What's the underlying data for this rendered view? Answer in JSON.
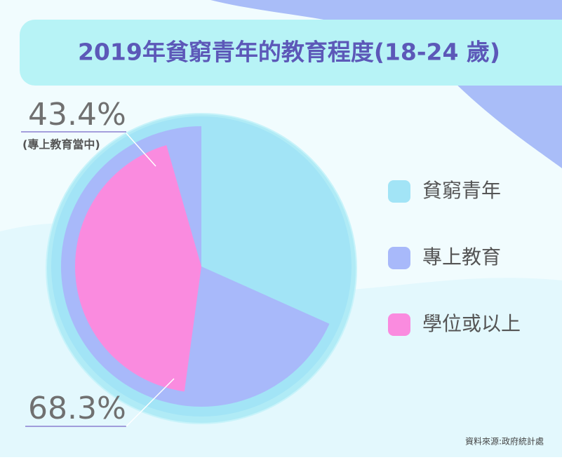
{
  "chart_data": {
    "type": "pie",
    "title": "2019年貧窮青年的教育程度(18-24 歲)",
    "categories": [
      "貧窮青年",
      "專上教育",
      "學位或以上"
    ],
    "values": [
      100,
      68.3,
      43.4
    ],
    "value_labels": [
      null,
      "68.3%",
      "43.4%"
    ],
    "colors": [
      "#a2e4f6",
      "#a8b9fa",
      "#fa8bdf"
    ],
    "annotation": "(專上教育當中)",
    "source": "資料來源:政府統計處"
  }
}
